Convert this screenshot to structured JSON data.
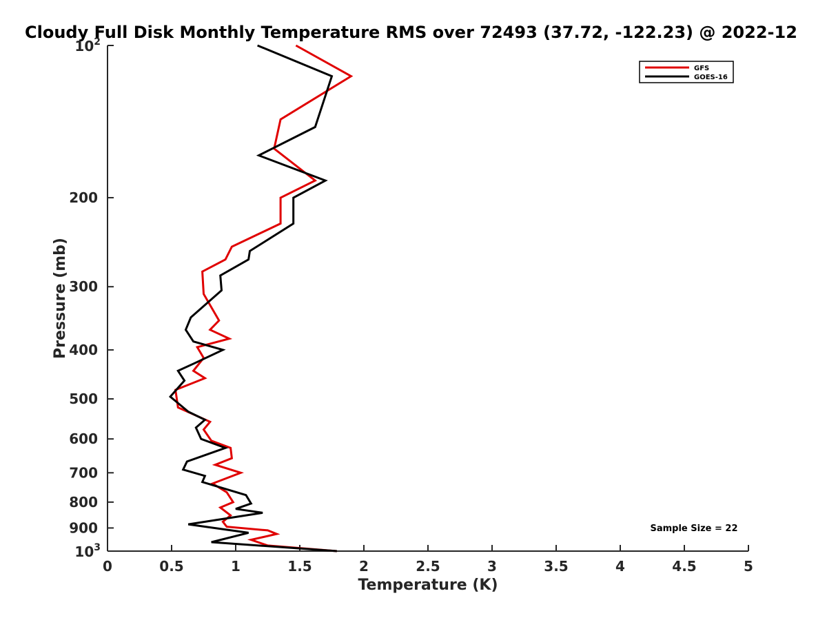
{
  "chart_data": {
    "type": "line",
    "title": "Cloudy Full Disk Monthly Temperature RMS over 72493 (37.72, -122.23) @ 2022-12",
    "xlabel": "Temperature (K)",
    "ylabel": "Pressure (mb)",
    "xlim": [
      0,
      5
    ],
    "ylim": [
      100,
      1000
    ],
    "y_scale": "log",
    "y_reversed": true,
    "x_ticks": [
      "0",
      "0.5",
      "1",
      "1.5",
      "2",
      "2.5",
      "3",
      "3.5",
      "4",
      "4.5",
      "5"
    ],
    "y_ticks": [
      {
        "value": 100,
        "base": "10",
        "exp": "2"
      },
      {
        "value": 200,
        "label": "200"
      },
      {
        "value": 300,
        "label": "300"
      },
      {
        "value": 400,
        "label": "400"
      },
      {
        "value": 500,
        "label": "500"
      },
      {
        "value": 600,
        "label": "600"
      },
      {
        "value": 700,
        "label": "700"
      },
      {
        "value": 800,
        "label": "800"
      },
      {
        "value": 900,
        "label": "900"
      },
      {
        "value": 1000,
        "base": "10",
        "exp": "3"
      }
    ],
    "legend_position": "top-right",
    "grid": false,
    "annotation": "Sample Size = 22",
    "series": [
      {
        "name": "GFS",
        "color": "#e00000",
        "points": [
          [
            1.47,
            100
          ],
          [
            1.9,
            115
          ],
          [
            1.35,
            140
          ],
          [
            1.3,
            160
          ],
          [
            1.62,
            185
          ],
          [
            1.35,
            200
          ],
          [
            1.35,
            225
          ],
          [
            0.97,
            250
          ],
          [
            0.92,
            265
          ],
          [
            0.74,
            280
          ],
          [
            0.75,
            310
          ],
          [
            0.87,
            350
          ],
          [
            0.8,
            365
          ],
          [
            0.95,
            380
          ],
          [
            0.7,
            395
          ],
          [
            0.75,
            415
          ],
          [
            0.67,
            440
          ],
          [
            0.76,
            455
          ],
          [
            0.53,
            480
          ],
          [
            0.55,
            520
          ],
          [
            0.8,
            555
          ],
          [
            0.75,
            575
          ],
          [
            0.81,
            605
          ],
          [
            0.96,
            625
          ],
          [
            0.97,
            655
          ],
          [
            0.84,
            675
          ],
          [
            1.04,
            700
          ],
          [
            0.82,
            735
          ],
          [
            0.93,
            765
          ],
          [
            0.98,
            800
          ],
          [
            0.88,
            820
          ],
          [
            0.96,
            850
          ],
          [
            0.9,
            875
          ],
          [
            0.93,
            895
          ],
          [
            1.25,
            910
          ],
          [
            1.32,
            925
          ],
          [
            1.12,
            950
          ],
          [
            1.25,
            975
          ],
          [
            1.79,
            1000
          ]
        ]
      },
      {
        "name": "GOES-16",
        "color": "#000000",
        "points": [
          [
            1.17,
            100
          ],
          [
            1.75,
            115
          ],
          [
            1.62,
            145
          ],
          [
            1.18,
            165
          ],
          [
            1.7,
            185
          ],
          [
            1.45,
            200
          ],
          [
            1.45,
            225
          ],
          [
            1.11,
            255
          ],
          [
            1.1,
            265
          ],
          [
            0.88,
            285
          ],
          [
            0.89,
            305
          ],
          [
            0.65,
            345
          ],
          [
            0.61,
            365
          ],
          [
            0.67,
            385
          ],
          [
            0.9,
            400
          ],
          [
            0.68,
            425
          ],
          [
            0.55,
            440
          ],
          [
            0.6,
            460
          ],
          [
            0.49,
            495
          ],
          [
            0.63,
            530
          ],
          [
            0.76,
            550
          ],
          [
            0.69,
            570
          ],
          [
            0.73,
            600
          ],
          [
            0.92,
            625
          ],
          [
            0.62,
            665
          ],
          [
            0.59,
            690
          ],
          [
            0.76,
            710
          ],
          [
            0.74,
            730
          ],
          [
            1.08,
            775
          ],
          [
            1.12,
            805
          ],
          [
            1.0,
            825
          ],
          [
            1.21,
            840
          ],
          [
            0.63,
            885
          ],
          [
            1.1,
            920
          ],
          [
            0.81,
            960
          ],
          [
            1.79,
            1000
          ]
        ]
      }
    ]
  }
}
